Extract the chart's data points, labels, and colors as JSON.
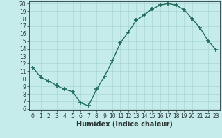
{
  "x": [
    0,
    1,
    2,
    3,
    4,
    5,
    6,
    7,
    8,
    9,
    10,
    11,
    12,
    13,
    14,
    15,
    16,
    17,
    18,
    19,
    20,
    21,
    22,
    23
  ],
  "y": [
    11.5,
    10.2,
    9.7,
    9.1,
    8.6,
    8.3,
    6.8,
    6.4,
    8.6,
    10.3,
    12.4,
    14.8,
    16.2,
    17.8,
    18.5,
    19.3,
    19.8,
    20.0,
    19.8,
    19.2,
    18.0,
    16.8,
    15.1,
    13.9
  ],
  "xlabel": "Humidex (Indice chaleur)",
  "xlim": [
    -0.5,
    23.5
  ],
  "ylim": [
    5.8,
    20.3
  ],
  "yticks": [
    6,
    7,
    8,
    9,
    10,
    11,
    12,
    13,
    14,
    15,
    16,
    17,
    18,
    19,
    20
  ],
  "xticks": [
    0,
    1,
    2,
    3,
    4,
    5,
    6,
    7,
    8,
    9,
    10,
    11,
    12,
    13,
    14,
    15,
    16,
    17,
    18,
    19,
    20,
    21,
    22,
    23
  ],
  "bg_color": "#c5ecea",
  "line_color": "#1f6b58",
  "marker_color": "#1f6b58",
  "grid_color": "#aad6d2",
  "font_color": "#2a3535",
  "xlabel_fontsize": 7,
  "tick_fontsize": 5.5,
  "linewidth": 1.0,
  "markersize": 4,
  "marker": "+"
}
